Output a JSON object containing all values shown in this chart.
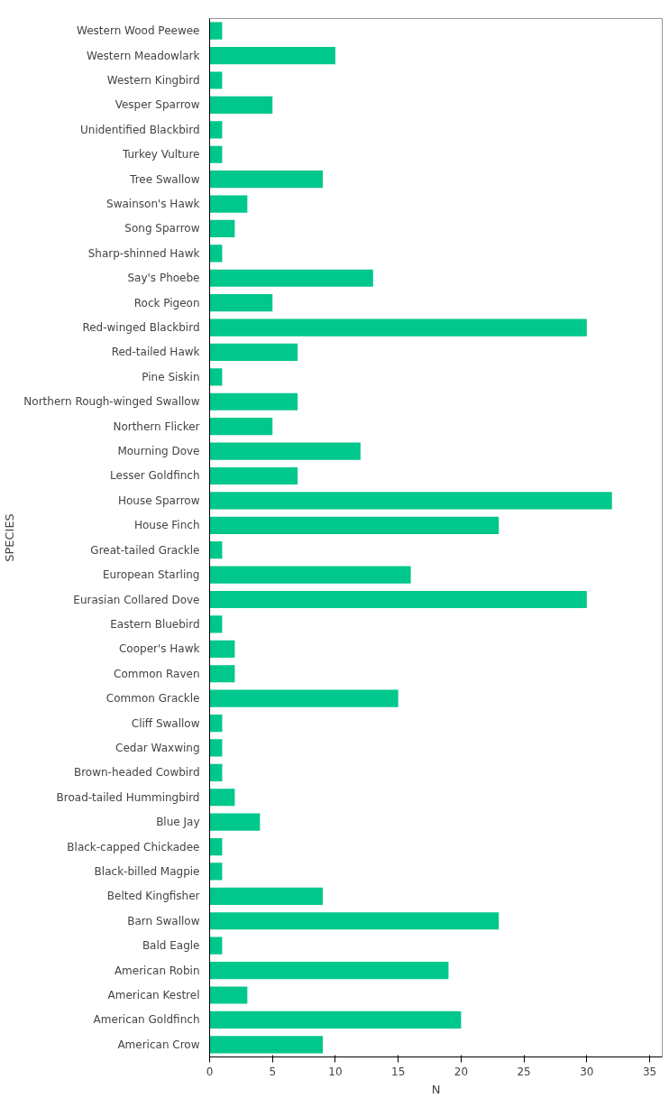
{
  "chart_data": {
    "type": "bar",
    "orientation": "horizontal",
    "xlabel": "N",
    "ylabel": "SPECIES",
    "categories": [
      "Western Wood Peewee",
      "Western Meadowlark",
      "Western Kingbird",
      "Vesper Sparrow",
      "Unidentified Blackbird",
      "Turkey Vulture",
      "Tree Swallow",
      "Swainson's Hawk",
      "Song Sparrow",
      "Sharp-shinned Hawk",
      "Say's Phoebe",
      "Rock Pigeon",
      "Red-winged Blackbird",
      "Red-tailed Hawk",
      "Pine Siskin",
      "Northern Rough-winged Swallow",
      "Northern Flicker",
      "Mourning Dove",
      "Lesser Goldfinch",
      "House Sparrow",
      "House Finch",
      "Great-tailed Grackle",
      "European Starling",
      "Eurasian Collared Dove",
      "Eastern Bluebird",
      "Cooper's Hawk",
      "Common Raven",
      "Common Grackle",
      "Cliff Swallow",
      "Cedar Waxwing",
      "Brown-headed Cowbird",
      "Broad-tailed Hummingbird",
      "Blue Jay",
      "Black-capped Chickadee",
      "Black-billed Magpie",
      "Belted Kingfisher",
      "Barn Swallow",
      "Bald Eagle",
      "American Robin",
      "American Kestrel",
      "American Goldfinch",
      "American Crow"
    ],
    "values": [
      1,
      10,
      1,
      5,
      1,
      1,
      9,
      3,
      2,
      1,
      13,
      5,
      30,
      7,
      1,
      7,
      5,
      12,
      7,
      32,
      23,
      1,
      16,
      30,
      1,
      2,
      2,
      15,
      1,
      1,
      1,
      2,
      4,
      1,
      1,
      9,
      23,
      1,
      19,
      3,
      20,
      9
    ],
    "color": "#00c78c",
    "xlim": [
      0,
      36
    ],
    "xticks": [
      0,
      5,
      10,
      15,
      20,
      25,
      30,
      35
    ],
    "grid": false
  }
}
